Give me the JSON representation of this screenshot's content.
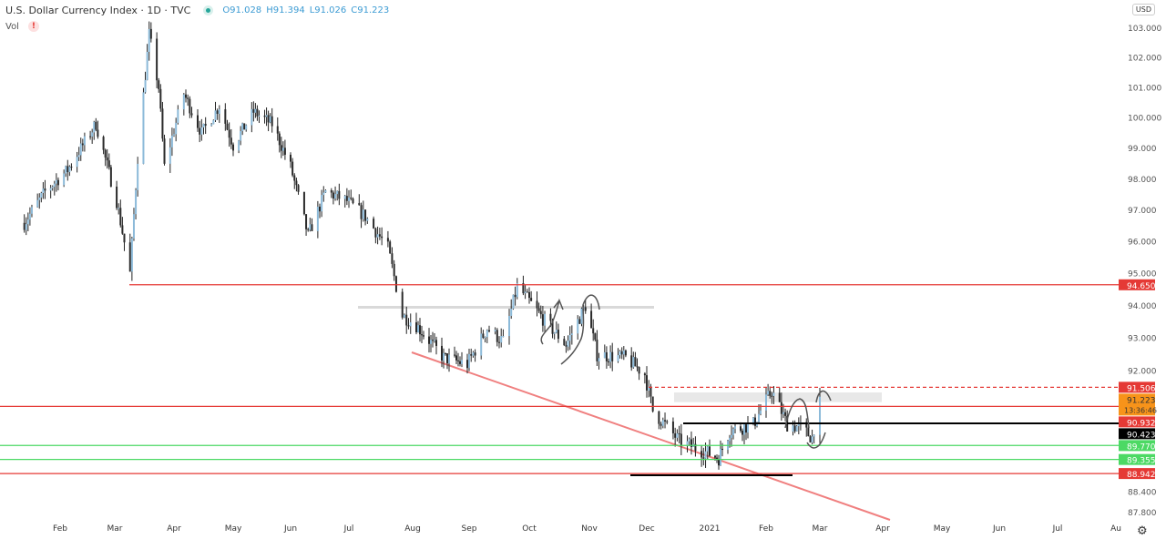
{
  "header": {
    "symbol": "U.S. Dollar Currency Index · 1D · TVC",
    "open": "O91.028",
    "high": "H91.394",
    "low": "L91.026",
    "close": "C91.223",
    "volume_label": "Vol",
    "warning": "!"
  },
  "currency_button": "USD",
  "settings_icon": "gear-icon",
  "colors": {
    "up": "#8cbad9",
    "down": "#2a2a2a",
    "red": "#e53935",
    "green": "#4cd964",
    "black": "#000000",
    "orange": "#f7931a",
    "trend": "#f08080",
    "grey": "#d9d9d9"
  },
  "chart_data": {
    "type": "candlestick",
    "price_ticks": [
      "103.000",
      "102.000",
      "101.000",
      "100.000",
      "99.000",
      "98.000",
      "97.000",
      "96.000",
      "95.000",
      "94.000",
      "93.000",
      "92.000",
      "88.400",
      "87.800"
    ],
    "time_ticks": [
      "Feb",
      "Mar",
      "Apr",
      "May",
      "Jun",
      "Jul",
      "Aug",
      "Sep",
      "Oct",
      "Nov",
      "Dec",
      "2021",
      "Feb",
      "Mar",
      "Apr",
      "May",
      "Jun",
      "Jul",
      "Au"
    ],
    "waypoints": [
      [
        "2020-01-13",
        96.6
      ],
      [
        "2020-01-24",
        97.6
      ],
      [
        "2020-02-05",
        98.3
      ],
      [
        "2020-02-20",
        99.8
      ],
      [
        "2020-03-02",
        97.3
      ],
      [
        "2020-03-09",
        95.0
      ],
      [
        "2020-03-13",
        98.7
      ],
      [
        "2020-03-19",
        102.8
      ],
      [
        "2020-03-24",
        101.0
      ],
      [
        "2020-03-27",
        98.4
      ],
      [
        "2020-04-06",
        100.8
      ],
      [
        "2020-04-15",
        99.5
      ],
      [
        "2020-04-24",
        100.4
      ],
      [
        "2020-05-01",
        99.1
      ],
      [
        "2020-05-12",
        100.2
      ],
      [
        "2020-05-22",
        99.8
      ],
      [
        "2020-06-01",
        98.4
      ],
      [
        "2020-06-10",
        96.2
      ],
      [
        "2020-06-19",
        97.6
      ],
      [
        "2020-06-30",
        97.3
      ],
      [
        "2020-07-09",
        96.8
      ],
      [
        "2020-07-20",
        95.8
      ],
      [
        "2020-07-27",
        93.7
      ],
      [
        "2020-08-03",
        93.4
      ],
      [
        "2020-08-18",
        92.4
      ],
      [
        "2020-08-31",
        92.2
      ],
      [
        "2020-09-10",
        93.3
      ],
      [
        "2020-09-18",
        92.9
      ],
      [
        "2020-09-25",
        94.6
      ],
      [
        "2020-10-08",
        93.6
      ],
      [
        "2020-10-20",
        92.8
      ],
      [
        "2020-10-30",
        94.0
      ],
      [
        "2020-11-05",
        92.5
      ],
      [
        "2020-11-20",
        92.4
      ],
      [
        "2020-11-30",
        91.9
      ],
      [
        "2020-12-04",
        90.8
      ],
      [
        "2020-12-17",
        89.9
      ],
      [
        "2021-01-06",
        89.4
      ],
      [
        "2021-01-12",
        90.2
      ],
      [
        "2021-01-25",
        90.4
      ],
      [
        "2021-02-04",
        91.4
      ],
      [
        "2021-02-12",
        90.4
      ],
      [
        "2021-02-19",
        90.3
      ],
      [
        "2021-02-25",
        90.0
      ],
      [
        "2021-03-01",
        91.22
      ]
    ],
    "levels": [
      {
        "label": "94.650",
        "price": 94.65,
        "color": "red"
      },
      {
        "label": "91.506",
        "price": 91.506,
        "color": "red",
        "dashed": true
      },
      {
        "label": "91.223",
        "price": 91.223,
        "color": "orange",
        "sub": "13:36:46"
      },
      {
        "label": "90.932",
        "price": 90.932,
        "color": "red"
      },
      {
        "label": "90.423",
        "price": 90.423,
        "color": "black"
      },
      {
        "label": "89.770",
        "price": 89.77,
        "color": "green"
      },
      {
        "label": "89.355",
        "price": 89.355,
        "color": "green"
      },
      {
        "label": "88.942",
        "price": 88.942,
        "color": "red"
      }
    ],
    "last_price": 91.223
  }
}
